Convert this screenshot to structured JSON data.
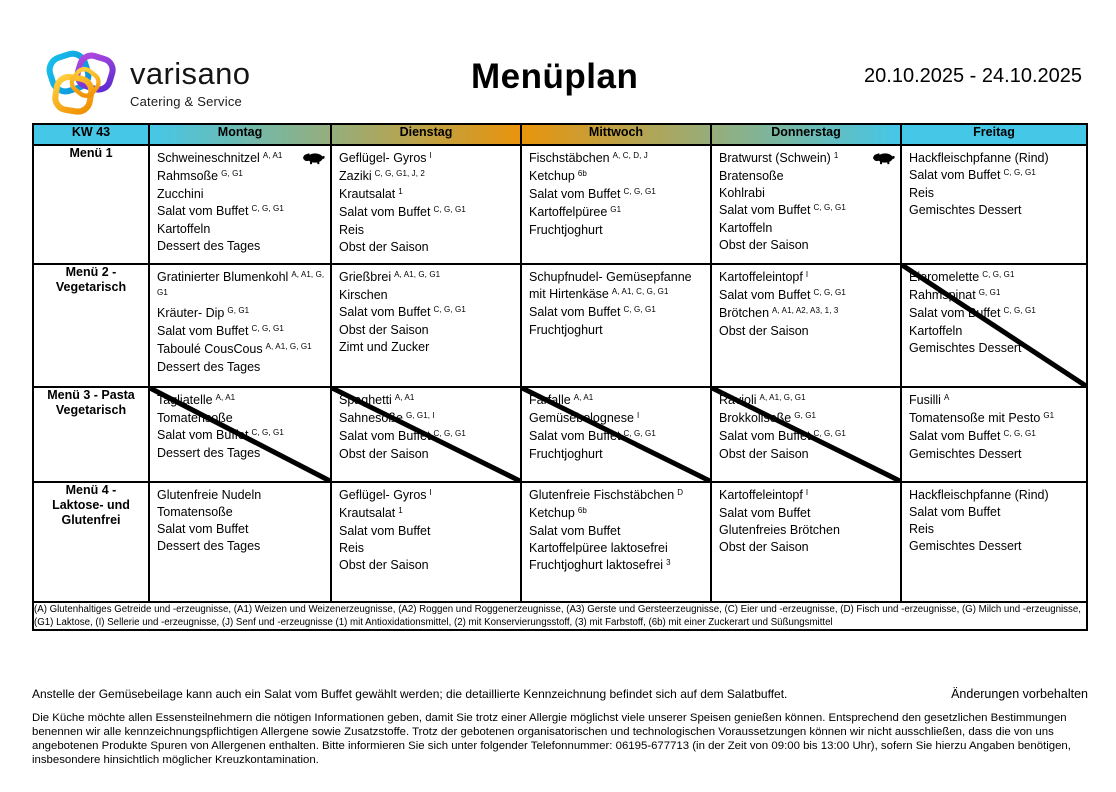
{
  "header": {
    "brand": "varisano",
    "tagline": "Catering & Service",
    "title": "Menüplan",
    "date_range": "20.10.2025 - 24.10.2025"
  },
  "table": {
    "week_label": "KW 43",
    "week_color": "#45C7E8",
    "accent_orange": "#E8940C",
    "days": [
      {
        "label": "Montag",
        "grad": [
          "#45C7E8",
          "#95AE7C"
        ]
      },
      {
        "label": "Dienstag",
        "grad": [
          "#95AE7C",
          "#E8940C"
        ]
      },
      {
        "label": "Mittwoch",
        "grad": [
          "#E8940C",
          "#96AD7A"
        ]
      },
      {
        "label": "Donnerstag",
        "grad": [
          "#96AD7A",
          "#45C7E8"
        ]
      },
      {
        "label": "Freitag",
        "grad": [
          "#45C7E8",
          "#45C7E8"
        ]
      }
    ],
    "rows": [
      {
        "label": "Menü 1",
        "label_lines": [
          "Menü 1"
        ],
        "cells": [
          {
            "pig": true,
            "struck": false,
            "items": [
              {
                "t": "Schweineschnitzel",
                "s": "A, A1"
              },
              {
                "t": "Rahmsoße",
                "s": "G, G1"
              },
              {
                "t": "Zucchini"
              },
              {
                "t": "Salat vom Buffet",
                "s": "C, G, G1"
              },
              {
                "t": "Kartoffeln"
              },
              {
                "t": "Dessert des Tages"
              }
            ]
          },
          {
            "pig": false,
            "struck": false,
            "items": [
              {
                "t": "Geflügel- Gyros",
                "s": "I"
              },
              {
                "t": "Zaziki",
                "s": "C, G, G1, J, 2"
              },
              {
                "t": "Krautsalat",
                "s": "1"
              },
              {
                "t": "Salat vom Buffet",
                "s": "C, G, G1"
              },
              {
                "t": "Reis"
              },
              {
                "t": "Obst der Saison"
              }
            ]
          },
          {
            "pig": false,
            "struck": false,
            "items": [
              {
                "t": "Fischstäbchen",
                "s": "A, C, D, J"
              },
              {
                "t": "Ketchup",
                "s": "6b"
              },
              {
                "t": "Salat vom Buffet",
                "s": "C, G, G1"
              },
              {
                "t": "Kartoffelpüree",
                "s": "G1"
              },
              {
                "t": "Fruchtjoghurt"
              }
            ]
          },
          {
            "pig": true,
            "struck": false,
            "items": [
              {
                "t": "Bratwurst (Schwein)",
                "s": "1"
              },
              {
                "t": "Bratensoße"
              },
              {
                "t": "Kohlrabi"
              },
              {
                "t": "Salat vom Buffet",
                "s": "C, G, G1"
              },
              {
                "t": "Kartoffeln"
              },
              {
                "t": "Obst der Saison"
              }
            ]
          },
          {
            "pig": false,
            "struck": false,
            "items": [
              {
                "t": "Hackfleischpfanne (Rind)"
              },
              {
                "t": "Salat vom Buffet",
                "s": "C, G, G1"
              },
              {
                "t": "Reis"
              },
              {
                "t": "Gemischtes Dessert"
              }
            ]
          }
        ]
      },
      {
        "label": "Menü 2 - Vegetarisch",
        "label_lines": [
          "Menü 2 -",
          "Vegetarisch"
        ],
        "cells": [
          {
            "pig": false,
            "struck": false,
            "items": [
              {
                "t": "Gratinierter Blumenkohl",
                "s": "A, A1, G, G1"
              },
              {
                "t": "Kräuter- Dip",
                "s": "G, G1"
              },
              {
                "t": "Salat vom Buffet",
                "s": "C, G, G1"
              },
              {
                "t": "Taboulé CousCous",
                "s": "A, A1, G, G1"
              },
              {
                "t": "Dessert des Tages"
              }
            ]
          },
          {
            "pig": false,
            "struck": false,
            "items": [
              {
                "t": "Grießbrei",
                "s": "A, A1, G, G1"
              },
              {
                "t": "Kirschen"
              },
              {
                "t": "Salat vom Buffet",
                "s": "C, G, G1"
              },
              {
                "t": "Obst der Saison"
              },
              {
                "t": "Zimt und Zucker"
              }
            ]
          },
          {
            "pig": false,
            "struck": false,
            "items": [
              {
                "t": "Schupfnudel- Gemüsepfanne mit Hirtenkäse",
                "s": "A, A1, C, G, G1"
              },
              {
                "t": "Salat vom Buffet",
                "s": "C, G, G1"
              },
              {
                "t": "Fruchtjoghurt"
              }
            ]
          },
          {
            "pig": false,
            "struck": false,
            "items": [
              {
                "t": "Kartoffeleintopf",
                "s": "I"
              },
              {
                "t": "Salat vom Buffet",
                "s": "C, G, G1"
              },
              {
                "t": "Brötchen",
                "s": "A, A1, A2, A3, 1, 3"
              },
              {
                "t": "Obst der Saison"
              }
            ]
          },
          {
            "pig": false,
            "struck": true,
            "items": [
              {
                "t": "Eieromelette",
                "s": "C, G, G1"
              },
              {
                "t": "Rahmspinat",
                "s": "G, G1"
              },
              {
                "t": "Salat vom Buffet",
                "s": "C, G, G1"
              },
              {
                "t": "Kartoffeln"
              },
              {
                "t": "Gemischtes Dessert"
              }
            ]
          }
        ]
      },
      {
        "label": "Menü 3 - Pasta Vegetarisch",
        "label_lines": [
          "Menü 3 - Pasta",
          "Vegetarisch"
        ],
        "cells": [
          {
            "pig": false,
            "struck": true,
            "items": [
              {
                "t": "Tagliatelle",
                "s": "A, A1"
              },
              {
                "t": "Tomatensoße"
              },
              {
                "t": "Salat vom Buffet",
                "s": "C, G, G1"
              },
              {
                "t": "Dessert des Tages"
              }
            ]
          },
          {
            "pig": false,
            "struck": true,
            "items": [
              {
                "t": "Spaghetti",
                "s": "A, A1"
              },
              {
                "t": "Sahnesoße",
                "s": "G, G1, I"
              },
              {
                "t": "Salat vom Buffet",
                "s": "C, G, G1"
              },
              {
                "t": "Obst der Saison"
              }
            ]
          },
          {
            "pig": false,
            "struck": true,
            "items": [
              {
                "t": "Farfalle",
                "s": "A, A1"
              },
              {
                "t": "Gemüsebolognese",
                "s": "I"
              },
              {
                "t": "Salat vom Buffet",
                "s": "C, G, G1"
              },
              {
                "t": "Fruchtjoghurt"
              }
            ]
          },
          {
            "pig": false,
            "struck": true,
            "items": [
              {
                "t": "Ravioli",
                "s": "A, A1, G, G1"
              },
              {
                "t": "Brokkolisoße",
                "s": "G, G1"
              },
              {
                "t": "Salat vom Buffet",
                "s": "C, G, G1"
              },
              {
                "t": "Obst der Saison"
              }
            ]
          },
          {
            "pig": false,
            "struck": false,
            "items": [
              {
                "t": "Fusilli",
                "s": "A"
              },
              {
                "t": "Tomatensoße mit Pesto",
                "s": "G1"
              },
              {
                "t": "Salat vom Buffet",
                "s": "C, G, G1"
              },
              {
                "t": "Gemischtes Dessert"
              }
            ]
          }
        ]
      },
      {
        "label": "Menü 4 - Laktose- und Glutenfrei",
        "label_lines": [
          "Menü 4 -",
          "Laktose- und",
          "Glutenfrei"
        ],
        "cells": [
          {
            "pig": false,
            "struck": false,
            "items": [
              {
                "t": "Glutenfreie Nudeln"
              },
              {
                "t": "Tomatensoße"
              },
              {
                "t": "Salat vom Buffet"
              },
              {
                "t": "Dessert des Tages"
              }
            ]
          },
          {
            "pig": false,
            "struck": false,
            "items": [
              {
                "t": "Geflügel- Gyros",
                "s": "I"
              },
              {
                "t": "Krautsalat",
                "s": "1"
              },
              {
                "t": "Salat vom Buffet"
              },
              {
                "t": "Reis"
              },
              {
                "t": "Obst der Saison"
              }
            ]
          },
          {
            "pig": false,
            "struck": false,
            "items": [
              {
                "t": "Glutenfreie Fischstäbchen",
                "s": "D"
              },
              {
                "t": "Ketchup",
                "s": "6b"
              },
              {
                "t": "Salat vom Buffet"
              },
              {
                "t": "Kartoffelpüree laktosefrei"
              },
              {
                "t": "Fruchtjoghurt laktosefrei",
                "s": "3"
              }
            ]
          },
          {
            "pig": false,
            "struck": false,
            "items": [
              {
                "t": "Kartoffeleintopf",
                "s": "I"
              },
              {
                "t": "Salat vom Buffet"
              },
              {
                "t": "Glutenfreies Brötchen"
              },
              {
                "t": "Obst der Saison"
              }
            ]
          },
          {
            "pig": false,
            "struck": false,
            "items": [
              {
                "t": "Hackfleischpfanne (Rind)"
              },
              {
                "t": "Salat vom Buffet"
              },
              {
                "t": "Reis"
              },
              {
                "t": "Gemischtes Dessert"
              }
            ]
          }
        ]
      }
    ]
  },
  "legend": "(A) Glutenhaltiges Getreide und -erzeugnisse, (A1) Weizen und Weizenerzeugnisse, (A2) Roggen und Roggenerzeugnisse, (A3) Gerste und Gersteerzeugnisse, (C) Eier und -erzeugnisse, (D) Fisch und -erzeugnisse, (G) Milch und -erzeugnisse, (G1) Laktose, (I) Sellerie und -erzeugnisse, (J) Senf und -erzeugnisse (1) mit Antioxidationsmittel, (2) mit Konservierungsstoff, (3) mit Farbstoff, (6b) mit einer Zuckerart und Süßungsmittel",
  "notes": {
    "salad_note": "Anstelle der Gemüsebeilage kann auch ein Salat vom Buffet gewählt werden; die detaillierte Kennzeichnung befindet sich auf dem Salatbuffet.",
    "changes_note": "Änderungen vorbehalten",
    "allergy_paragraph": "Die Küche möchte allen Essensteilnehmern die nötigen Informationen geben, damit Sie trotz einer Allergie möglichst viele unserer Speisen genießen können. Entsprechend den gesetzlichen Bestimmungen benennen wir alle kennzeichnungspflichtigen Allergene sowie Zusatzstoffe. Trotz der gebotenen organisatorischen und technologischen Voraussetzungen können wir nicht ausschließen, dass die von uns angebotenen Produkte Spuren von Allergenen enthalten. Bitte informieren Sie sich unter folgender Telefonnummer: 06195-677713 (in der Zeit von 09:00 bis 13:00 Uhr), sofern Sie hierzu Angaben benötigen, insbesondere hinsichtlich möglicher Kreuzkontamination."
  }
}
